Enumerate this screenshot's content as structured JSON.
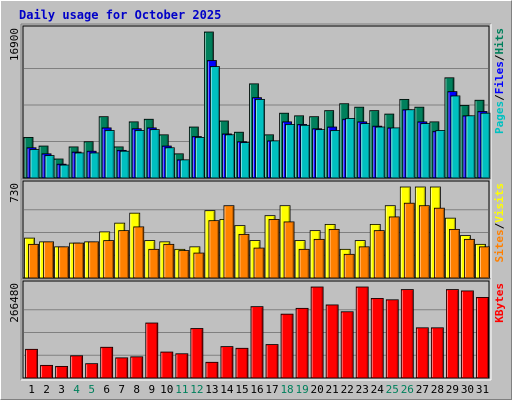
{
  "chart_data": {
    "type": "bar",
    "title": "Daily usage for October 2025",
    "categories": [
      "1",
      "2",
      "3",
      "4",
      "5",
      "6",
      "7",
      "8",
      "9",
      "10",
      "11",
      "12",
      "13",
      "14",
      "15",
      "16",
      "17",
      "18",
      "19",
      "20",
      "21",
      "22",
      "23",
      "24",
      "25",
      "26",
      "27",
      "28",
      "29",
      "30",
      "31"
    ],
    "weekend_days": [
      "4",
      "5",
      "11",
      "12",
      "18",
      "19",
      "25",
      "26"
    ],
    "panels": [
      {
        "id": "hits",
        "ylabel_max": "16900",
        "ymax": 16900,
        "legend": [
          {
            "label": "Pages",
            "color": "#00c0c0"
          },
          {
            "label": "Files",
            "color": "#0000ff"
          },
          {
            "label": "Hits",
            "color": "#00805c"
          }
        ],
        "series": [
          {
            "name": "Hits",
            "color": "#00805c",
            "values": [
              4700,
              3700,
              2200,
              3600,
              4200,
              7100,
              3600,
              6500,
              6800,
              5000,
              2800,
              5900,
              16900,
              6600,
              5300,
              10900,
              5000,
              7500,
              7200,
              7100,
              7800,
              8600,
              8200,
              7800,
              7400,
              9100,
              8200,
              6500,
              11600,
              8400,
              9000
            ]
          },
          {
            "name": "Files",
            "color": "#0000ff",
            "values": [
              3500,
              2800,
              1600,
              3000,
              3100,
              5800,
              3200,
              5700,
              5800,
              3700,
              2100,
              4800,
              13600,
              5100,
              4200,
              9300,
              4300,
              6500,
              6200,
              5700,
              5900,
              6800,
              6500,
              6000,
              5800,
              7900,
              6500,
              5400,
              10000,
              7200,
              7700
            ]
          },
          {
            "name": "Pages",
            "color": "#00c0c0",
            "values": [
              3300,
              2600,
              1500,
              2900,
              2900,
              5500,
              3100,
              5500,
              5600,
              3500,
              2100,
              4700,
              12900,
              5000,
              4100,
              9100,
              4300,
              6200,
              6100,
              5600,
              5500,
              6900,
              6300,
              5900,
              5800,
              7900,
              6300,
              5500,
              9500,
              7200,
              7500
            ]
          }
        ]
      },
      {
        "id": "visits",
        "ylabel_max": "730",
        "ymax": 730,
        "legend": [
          {
            "label": "Sites",
            "color": "#ff8000"
          },
          {
            "label": "Visits",
            "color": "#ffff00"
          }
        ],
        "series": [
          {
            "name": "Visits",
            "color": "#ffff00",
            "values": [
              320,
              290,
              250,
              280,
              290,
              370,
              440,
              520,
              300,
              290,
              230,
              250,
              540,
              470,
              420,
              300,
              500,
              580,
              300,
              380,
              430,
              230,
              300,
              430,
              580,
              730,
              730,
              730,
              480,
              340,
              270
            ]
          },
          {
            "name": "Sites",
            "color": "#ff8000",
            "values": [
              270,
              290,
              250,
              280,
              290,
              300,
              380,
              410,
              230,
              270,
              220,
              200,
              460,
              580,
              350,
              240,
              470,
              450,
              230,
              310,
              390,
              190,
              250,
              380,
              490,
              600,
              580,
              560,
              390,
              310,
              250
            ]
          }
        ]
      },
      {
        "id": "kbytes",
        "ylabel_max": "266480",
        "ymax": 266480,
        "legend": [
          {
            "label": "KBytes",
            "color": "#ff0000"
          }
        ],
        "series": [
          {
            "name": "KBytes",
            "color": "#ff0000",
            "values": [
              84000,
              37000,
              34000,
              65000,
              42000,
              90000,
              59000,
              62000,
              161000,
              76000,
              71000,
              145000,
              46000,
              92000,
              87000,
              209000,
              98000,
              187000,
              204000,
              266480,
              214000,
              194000,
              266480,
              233000,
              229000,
              259000,
              147000,
              147000,
              259000,
              255000,
              236000
            ]
          }
        ]
      }
    ]
  }
}
